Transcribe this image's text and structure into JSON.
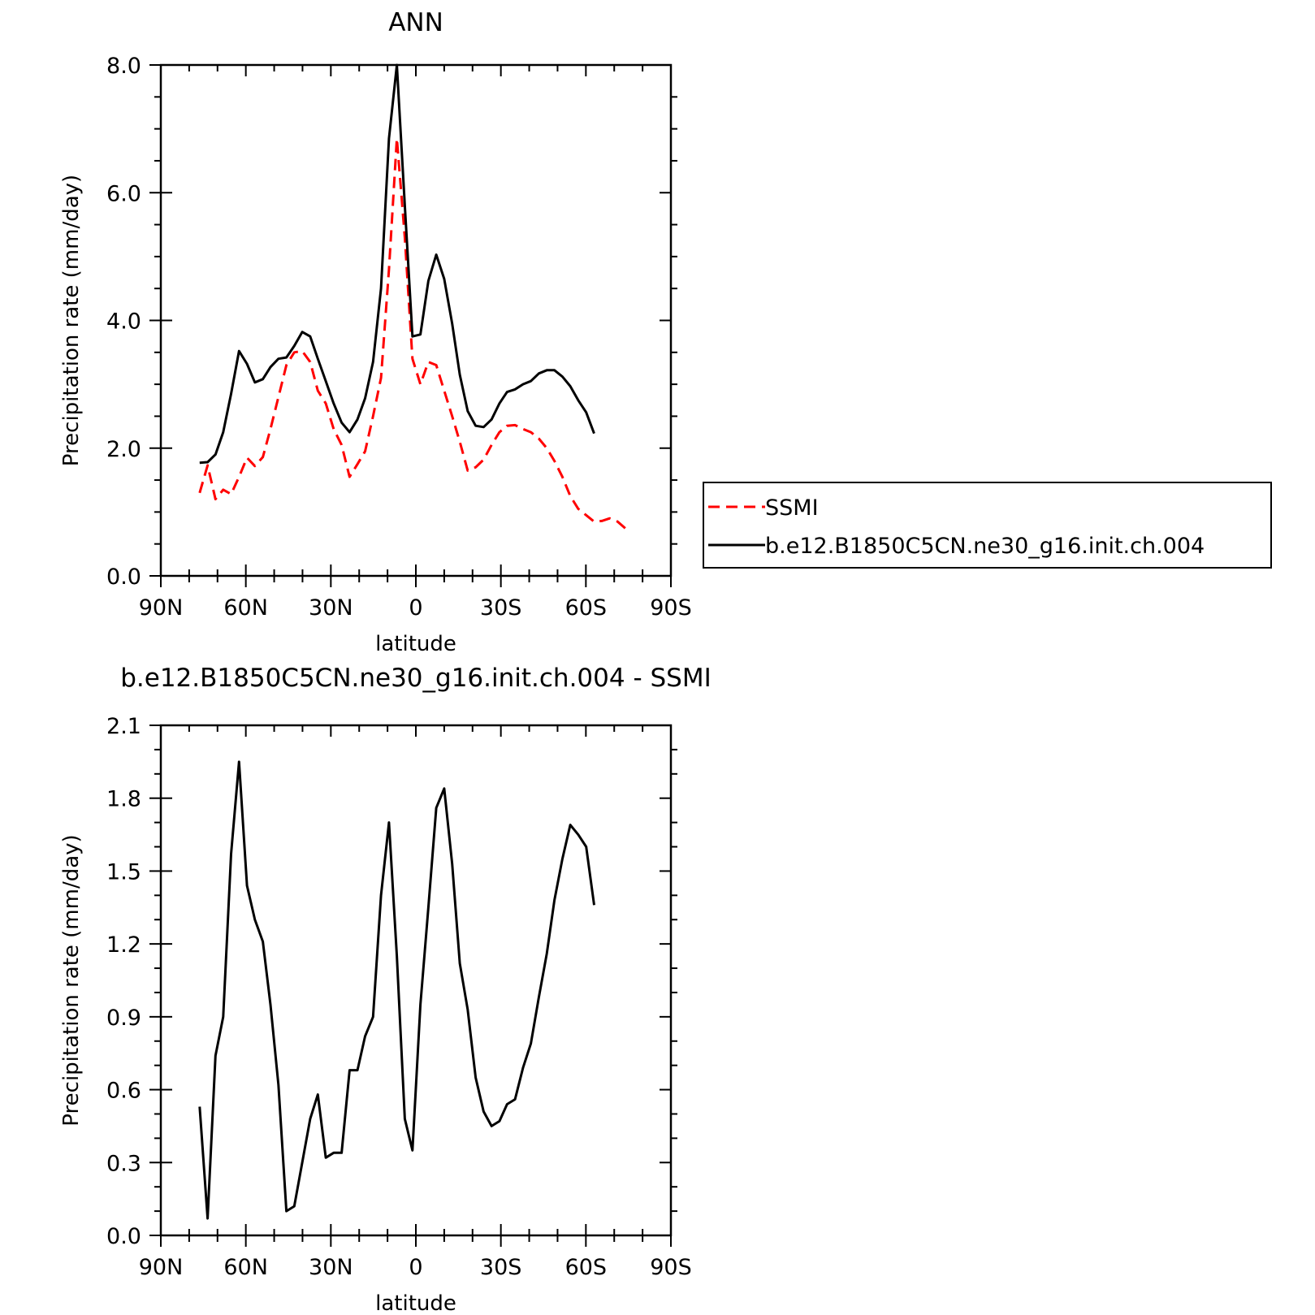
{
  "chart_data": [
    {
      "type": "line",
      "title": "ANN",
      "xlabel": "latitude",
      "ylabel": "Precipitation rate (mm/day)",
      "xlim": [
        90,
        -90
      ],
      "ylim": [
        0,
        8
      ],
      "x_ticks": [
        90,
        60,
        30,
        0,
        -30,
        -60,
        -90
      ],
      "x_tick_labels": [
        "90N",
        "60N",
        "30N",
        "0",
        "30S",
        "60S",
        "90S"
      ],
      "y_ticks": [
        0,
        2,
        4,
        6,
        8
      ],
      "y_tick_labels": [
        "0.0",
        "2.0",
        "4.0",
        "6.0",
        "8.0"
      ],
      "grid": false,
      "legend_position": "right",
      "series": [
        {
          "name": "SSMI",
          "color": "#ff0000",
          "style": "dashed",
          "x": [
            76.3,
            73.5,
            70.7,
            68.0,
            65.2,
            62.4,
            59.6,
            56.8,
            54.0,
            51.3,
            48.5,
            45.7,
            42.9,
            40.1,
            37.3,
            34.6,
            31.8,
            29.0,
            26.2,
            23.4,
            20.6,
            17.9,
            15.1,
            12.3,
            9.5,
            6.7,
            3.9,
            1.2,
            -1.6,
            -4.4,
            -7.2,
            -10.0,
            -12.8,
            -15.5,
            -18.3,
            -21.1,
            -23.9,
            -26.7,
            -29.5,
            -32.2,
            -35.0,
            -37.8,
            -40.6,
            -43.4,
            -46.2,
            -48.9,
            -51.7,
            -54.5,
            -57.3,
            -60.1,
            -62.9,
            -65.6,
            -68.4,
            -71.2,
            -74.0
          ],
          "y": [
            1.3,
            1.73,
            1.2,
            1.35,
            1.28,
            1.55,
            1.85,
            1.72,
            1.86,
            2.3,
            2.8,
            3.3,
            3.5,
            3.52,
            3.35,
            2.9,
            2.7,
            2.3,
            2.05,
            1.55,
            1.75,
            1.95,
            2.5,
            3.1,
            4.8,
            6.85,
            5.3,
            3.4,
            3.0,
            3.35,
            3.3,
            2.9,
            2.5,
            2.1,
            1.65,
            1.7,
            1.82,
            2.05,
            2.25,
            2.35,
            2.36,
            2.3,
            2.25,
            2.15,
            2.0,
            1.8,
            1.55,
            1.25,
            1.05,
            0.95,
            0.85,
            0.86,
            0.9,
            0.85,
            0.74
          ]
        },
        {
          "name": "b.e12.B1850C5CN.ne30_g16.init.ch.004",
          "color": "#000000",
          "style": "solid",
          "x": [
            76.3,
            73.5,
            70.7,
            68.0,
            65.2,
            62.4,
            59.6,
            56.8,
            54.0,
            51.3,
            48.5,
            45.7,
            42.9,
            40.1,
            37.3,
            34.6,
            31.8,
            29.0,
            26.2,
            23.4,
            20.6,
            17.9,
            15.1,
            12.3,
            9.5,
            6.7,
            3.9,
            1.2,
            -1.6,
            -4.4,
            -7.2,
            -10.0,
            -12.8,
            -15.5,
            -18.3,
            -21.1,
            -23.9,
            -26.7,
            -29.5,
            -32.2,
            -35.0,
            -37.8,
            -40.6,
            -43.4,
            -46.2,
            -48.9,
            -51.7,
            -54.5,
            -57.3,
            -60.1,
            -62.9
          ],
          "y": [
            1.77,
            1.78,
            1.9,
            2.25,
            2.85,
            3.52,
            3.32,
            3.03,
            3.08,
            3.27,
            3.4,
            3.42,
            3.6,
            3.82,
            3.75,
            3.4,
            3.05,
            2.7,
            2.4,
            2.25,
            2.45,
            2.78,
            3.35,
            4.5,
            6.85,
            8.0,
            5.8,
            3.75,
            3.78,
            4.62,
            5.03,
            4.65,
            3.95,
            3.15,
            2.58,
            2.35,
            2.33,
            2.45,
            2.7,
            2.88,
            2.92,
            3.0,
            3.05,
            3.17,
            3.22,
            3.22,
            3.12,
            2.97,
            2.75,
            2.56,
            2.23
          ]
        }
      ]
    },
    {
      "type": "line",
      "title": "b.e12.B1850C5CN.ne30_g16.init.ch.004 - SSMI",
      "xlabel": "latitude",
      "ylabel": "Precipitation rate (mm/day)",
      "xlim": [
        90,
        -90
      ],
      "ylim": [
        0,
        2.1
      ],
      "x_ticks": [
        90,
        60,
        30,
        0,
        -30,
        -60,
        -90
      ],
      "x_tick_labels": [
        "90N",
        "60N",
        "30N",
        "0",
        "30S",
        "60S",
        "90S"
      ],
      "y_ticks": [
        0,
        0.3,
        0.6,
        0.9,
        1.2,
        1.5,
        1.8,
        2.1
      ],
      "y_tick_labels": [
        "0.0",
        "0.3",
        "0.6",
        "0.9",
        "1.2",
        "1.5",
        "1.8",
        "2.1"
      ],
      "grid": false,
      "series": [
        {
          "color": "#000000",
          "style": "solid",
          "x": [
            76.3,
            73.5,
            70.7,
            68.0,
            65.2,
            62.4,
            59.6,
            56.8,
            54.0,
            51.3,
            48.5,
            45.7,
            42.9,
            40.1,
            37.3,
            34.6,
            31.8,
            29.0,
            26.2,
            23.4,
            20.6,
            17.9,
            15.1,
            12.3,
            9.5,
            6.7,
            3.9,
            1.2,
            -1.6,
            -4.4,
            -7.2,
            -10.0,
            -12.8,
            -15.5,
            -18.3,
            -21.1,
            -23.9,
            -26.7,
            -29.5,
            -32.2,
            -35.0,
            -37.8,
            -40.6,
            -43.4,
            -46.2,
            -48.9,
            -51.7,
            -54.5,
            -57.3,
            -60.1,
            -62.9
          ],
          "y": [
            0.53,
            0.07,
            0.74,
            0.9,
            1.57,
            1.95,
            1.44,
            1.3,
            1.21,
            0.95,
            0.62,
            0.1,
            0.12,
            0.3,
            0.48,
            0.58,
            0.32,
            0.34,
            0.34,
            0.68,
            0.68,
            0.82,
            0.9,
            1.4,
            1.7,
            1.15,
            0.48,
            0.35,
            0.95,
            1.35,
            1.76,
            1.84,
            1.53,
            1.12,
            0.93,
            0.65,
            0.51,
            0.45,
            0.47,
            0.54,
            0.56,
            0.69,
            0.79,
            0.98,
            1.16,
            1.38,
            1.55,
            1.69,
            1.65,
            1.6,
            1.36
          ]
        }
      ]
    }
  ]
}
